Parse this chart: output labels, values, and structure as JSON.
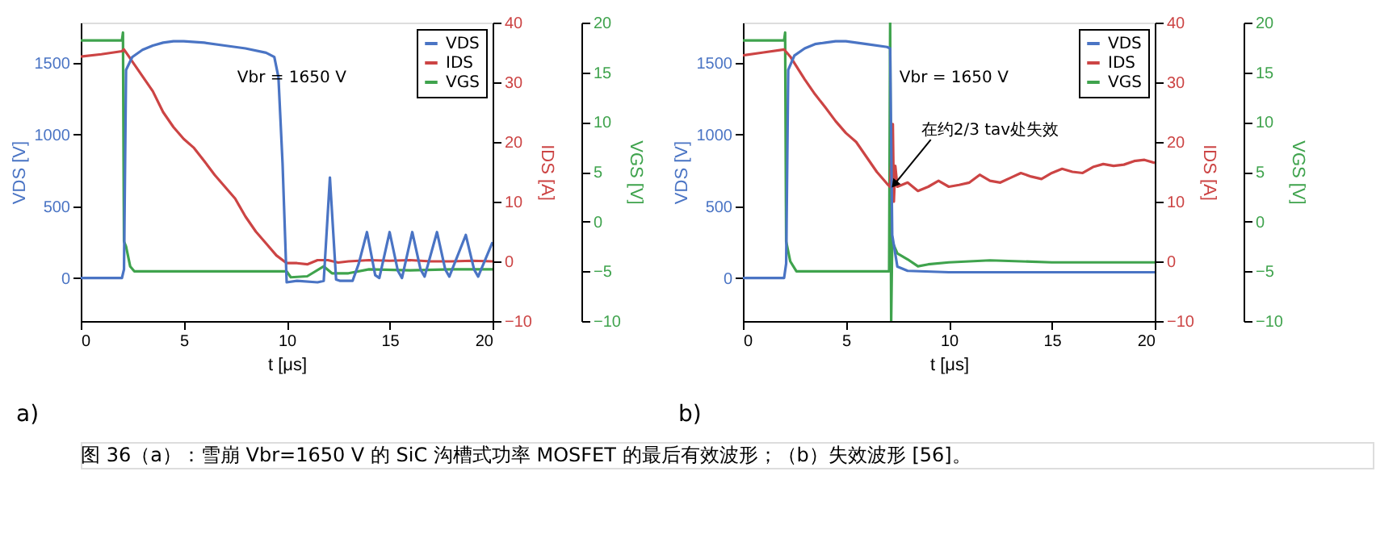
{
  "chart_data": [
    {
      "type": "line",
      "xlabel": "t [μs]",
      "ylabel": "VDS [V]",
      "y2label": "IDS [A]",
      "y3label": "VGS [V]",
      "xlim": [
        0,
        20
      ],
      "xticks": [
        0,
        5,
        10,
        15,
        20
      ],
      "ylim": [
        -300,
        1780
      ],
      "yticks": [
        0,
        500,
        1000,
        1500
      ],
      "y2lim": [
        -10,
        40
      ],
      "y2ticks": [
        -10,
        0,
        10,
        20,
        30,
        40
      ],
      "y3lim": [
        -10,
        20
      ],
      "y3ticks": [
        -10,
        -5,
        0,
        5,
        10,
        15,
        20
      ],
      "legend": "top right",
      "annotations": [
        "Vbr = 1650 V",
        "a)",
        "图 36（a）：雪崩 Vbr=1650 V 的 SiC 沟槽式功率 MOSFET 的最后有效波形；（b）失效波形 [56]。"
      ],
      "series": [
        {
          "name": "VDS",
          "color": "#4a74c4",
          "axis": "y",
          "x": [
            0,
            2.0,
            2.1,
            2.2,
            2.5,
            3,
            3.5,
            4,
            4.5,
            5,
            6,
            7,
            8,
            9,
            9.4,
            9.6,
            9.8,
            10.0,
            10.5,
            11.5,
            11.8,
            12.1,
            12.4,
            12.6,
            13.2,
            13.5,
            13.9,
            14.3,
            14.5,
            15.0,
            15.4,
            15.6,
            16.1,
            16.5,
            16.7,
            17.3,
            17.7,
            17.9,
            18.7,
            19.1,
            19.3,
            20
          ],
          "values": [
            0,
            0,
            60,
            1450,
            1540,
            1590,
            1620,
            1640,
            1650,
            1650,
            1640,
            1620,
            1600,
            1570,
            1540,
            1400,
            800,
            -30,
            -20,
            -30,
            -20,
            700,
            -10,
            -20,
            -20,
            100,
            320,
            20,
            0,
            320,
            50,
            0,
            320,
            60,
            10,
            320,
            60,
            10,
            300,
            60,
            10,
            250
          ]
        },
        {
          "name": "IDS",
          "color": "#cc4444",
          "axis": "y2",
          "x": [
            0,
            1,
            2,
            2.1,
            2.3,
            2.5,
            3,
            3.5,
            4,
            4.5,
            5,
            5.5,
            6,
            6.5,
            7,
            7.5,
            8,
            8.5,
            9,
            9.5,
            10,
            10.5,
            11,
            11.5,
            12,
            12.5,
            13,
            14,
            15,
            16,
            17,
            18,
            19,
            20
          ],
          "values": [
            34.3,
            34.7,
            35.2,
            35.5,
            34.5,
            33.5,
            31,
            28.5,
            25,
            22.5,
            20.5,
            19,
            16.8,
            14.5,
            12.5,
            10.5,
            7.5,
            5,
            3,
            1,
            -0.3,
            -0.3,
            -0.5,
            0.2,
            0.2,
            -0.2,
            0,
            0.2,
            0.1,
            0.2,
            0,
            0,
            0.1,
            0
          ]
        },
        {
          "name": "VGS",
          "color": "#3fa34d",
          "axis": "y3",
          "x": [
            0,
            2.0,
            2.05,
            2.1,
            2.2,
            2.4,
            2.6,
            4,
            6,
            8,
            10,
            10.2,
            11,
            11.8,
            12.2,
            13,
            14,
            16,
            18,
            20
          ],
          "values": [
            18.2,
            18.2,
            19,
            -2,
            -2.5,
            -4.5,
            -5.0,
            -5.0,
            -5,
            -5,
            -5,
            -5.6,
            -5.5,
            -4.5,
            -5.2,
            -5.2,
            -4.8,
            -4.9,
            -4.8,
            -4.8
          ]
        }
      ]
    },
    {
      "type": "line",
      "xlabel": "t [μs]",
      "ylabel": "VDS [V]",
      "y2label": "IDS [A]",
      "y3label": "VGS [V]",
      "xlim": [
        0,
        20
      ],
      "xticks": [
        0,
        5,
        10,
        15,
        20
      ],
      "ylim": [
        -300,
        1780
      ],
      "yticks": [
        0,
        500,
        1000,
        1500
      ],
      "y2lim": [
        -10,
        40
      ],
      "y2ticks": [
        -10,
        0,
        10,
        20,
        30,
        40
      ],
      "y3lim": [
        -10,
        20
      ],
      "y3ticks": [
        -10,
        -5,
        0,
        5,
        10,
        15,
        20
      ],
      "legend": "top right",
      "annotations": [
        "Vbr = 1650 V",
        "b)",
        {
          "text": "在约2/3 tav处失效",
          "x": 7.4,
          "y": 660
        }
      ],
      "series": [
        {
          "name": "VDS",
          "color": "#4a74c4",
          "axis": "y",
          "x": [
            0,
            2.0,
            2.1,
            2.2,
            2.5,
            3,
            3.5,
            4,
            4.5,
            5,
            6,
            7,
            7.15,
            7.25,
            7.5,
            8,
            10,
            15,
            20
          ],
          "values": [
            0,
            0,
            100,
            1450,
            1550,
            1600,
            1630,
            1640,
            1650,
            1650,
            1630,
            1610,
            1600,
            300,
            80,
            50,
            40,
            40,
            40
          ]
        },
        {
          "name": "IDS",
          "color": "#cc4444",
          "axis": "y2",
          "x": [
            0,
            1,
            2,
            2.3,
            3,
            3.5,
            4,
            4.5,
            5,
            5.5,
            6,
            6.5,
            7,
            7.15,
            7.28,
            7.33,
            7.4,
            7.5,
            8,
            8.5,
            9,
            9.5,
            10,
            10.5,
            11,
            11.5,
            12,
            12.5,
            13,
            13.5,
            14,
            14.5,
            15,
            15.5,
            16,
            16.5,
            17,
            17.5,
            18,
            18.5,
            19,
            19.5,
            20
          ],
          "values": [
            34.5,
            35,
            35.5,
            34.3,
            30.5,
            28,
            25.8,
            23.5,
            21.5,
            20,
            17.5,
            15,
            13,
            12.5,
            23,
            10,
            16,
            12.5,
            13.2,
            11.8,
            12.5,
            13.5,
            12.5,
            12.8,
            13.2,
            14.5,
            13.5,
            13.2,
            14,
            14.8,
            14.2,
            13.8,
            14.8,
            15.5,
            15,
            14.8,
            15.8,
            16.3,
            16,
            16.2,
            16.8,
            17,
            16.5
          ]
        },
        {
          "name": "VGS",
          "color": "#3fa34d",
          "axis": "y3",
          "x": [
            0,
            2.0,
            2.05,
            2.1,
            2.3,
            2.6,
            4,
            7.1,
            7.15,
            7.2,
            7.25,
            7.5,
            8,
            8.5,
            9,
            10,
            12,
            15,
            20
          ],
          "values": [
            18.2,
            18.2,
            19,
            -2,
            -4,
            -5,
            -5,
            -5,
            20,
            -10,
            -2,
            -3.2,
            -3.8,
            -4.5,
            -4.3,
            -4.1,
            -3.9,
            -4.1,
            -4.1
          ]
        }
      ]
    }
  ]
}
